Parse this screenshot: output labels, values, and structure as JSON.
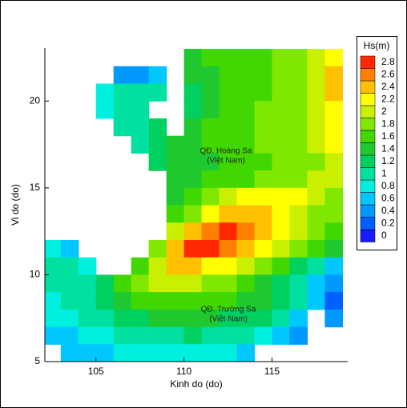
{
  "chart_data": {
    "type": "heatmap",
    "xlabel": "Kinh do (do)",
    "ylabel": "Vi do (do)",
    "xlim": [
      102.1,
      119.3
    ],
    "ylim": [
      5,
      23.05
    ],
    "xticks": [
      105,
      110,
      115
    ],
    "yticks": [
      5,
      10,
      15,
      20
    ],
    "x": [
      102.5,
      103.5,
      104.5,
      105.5,
      106.5,
      107.5,
      108.5,
      109.5,
      110.5,
      111.5,
      112.5,
      113.5,
      114.5,
      115.5,
      116.5,
      117.5,
      118.5
    ],
    "y": [
      22.5,
      21.5,
      20.5,
      19.5,
      18.5,
      17.5,
      16.5,
      15.5,
      14.5,
      13.5,
      12.5,
      11.5,
      10.5,
      9.5,
      8.5,
      7.5,
      6.5,
      5.5
    ],
    "z": [
      [
        null,
        null,
        null,
        null,
        null,
        null,
        null,
        null,
        1.5,
        1.6,
        1.6,
        1.7,
        1.7,
        1.8,
        1.8,
        2.0,
        2.3
      ],
      [
        null,
        null,
        null,
        null,
        0.4,
        0.5,
        0.6,
        null,
        1.4,
        1.5,
        1.6,
        1.7,
        1.7,
        1.8,
        1.9,
        2.1,
        2.4
      ],
      [
        null,
        null,
        null,
        0.8,
        1.0,
        1.0,
        1.0,
        null,
        1.3,
        1.5,
        1.6,
        1.7,
        1.7,
        1.8,
        1.9,
        2.1,
        2.4
      ],
      [
        null,
        null,
        null,
        0.8,
        1.0,
        1.0,
        null,
        null,
        1.2,
        1.5,
        1.6,
        1.7,
        1.8,
        1.8,
        1.9,
        2.1,
        2.3
      ],
      [
        null,
        null,
        null,
        null,
        1.0,
        1.1,
        1.2,
        null,
        1.4,
        1.6,
        1.6,
        1.7,
        1.8,
        1.8,
        1.9,
        2.1,
        2.3
      ],
      [
        null,
        null,
        null,
        null,
        null,
        1.0,
        1.3,
        1.4,
        1.5,
        1.6,
        1.6,
        1.7,
        1.8,
        1.8,
        1.9,
        2.0,
        2.2
      ],
      [
        null,
        null,
        null,
        null,
        null,
        null,
        1.2,
        1.4,
        1.5,
        1.5,
        1.6,
        1.7,
        1.7,
        1.8,
        1.8,
        1.9,
        2.1
      ],
      [
        null,
        null,
        null,
        null,
        null,
        null,
        null,
        1.4,
        1.5,
        1.6,
        1.6,
        1.7,
        1.8,
        1.9,
        1.9,
        2.0,
        2.1
      ],
      [
        null,
        null,
        null,
        null,
        null,
        null,
        null,
        1.5,
        1.7,
        1.9,
        2.0,
        2.2,
        2.3,
        2.3,
        2.2,
        2.0,
        1.8
      ],
      [
        null,
        null,
        null,
        null,
        null,
        null,
        null,
        1.6,
        1.9,
        2.2,
        2.4,
        2.5,
        2.4,
        2.3,
        2.1,
        1.9,
        1.8
      ],
      [
        null,
        null,
        null,
        null,
        null,
        null,
        null,
        2.0,
        2.5,
        2.7,
        2.8,
        2.6,
        2.4,
        2.2,
        2.0,
        1.8,
        1.6
      ],
      [
        0.8,
        0.6,
        null,
        null,
        null,
        null,
        1.8,
        2.4,
        2.8,
        2.8,
        2.6,
        2.4,
        2.2,
        2.0,
        1.8,
        1.6,
        1.4
      ],
      [
        1.0,
        1.0,
        0.9,
        null,
        null,
        1.6,
        2.0,
        2.4,
        2.4,
        2.3,
        2.2,
        2.0,
        1.8,
        1.6,
        1.3,
        1.0,
        0.6
      ],
      [
        1.0,
        1.0,
        1.0,
        1.2,
        1.6,
        1.9,
        2.1,
        2.1,
        2.0,
        1.9,
        1.8,
        1.7,
        1.5,
        1.3,
        1.0,
        0.7,
        0.4
      ],
      [
        0.9,
        1.0,
        1.1,
        1.3,
        1.5,
        1.6,
        1.7,
        1.7,
        1.7,
        1.6,
        1.6,
        1.5,
        1.4,
        1.2,
        1.0,
        0.7,
        0.3
      ],
      [
        0.8,
        0.9,
        1.0,
        1.1,
        1.2,
        1.3,
        1.4,
        1.4,
        1.4,
        1.4,
        1.3,
        1.3,
        1.2,
        1.0,
        0.7,
        null,
        0.4
      ],
      [
        0.6,
        0.7,
        0.8,
        0.9,
        1.0,
        1.1,
        1.1,
        1.1,
        1.2,
        1.1,
        1.1,
        1.0,
        0.9,
        0.7,
        0.5,
        null,
        null
      ],
      [
        null,
        0.6,
        0.6,
        0.7,
        0.8,
        0.8,
        0.9,
        0.9,
        0.9,
        0.9,
        0.8,
        0.7,
        null,
        null,
        null,
        null,
        null
      ]
    ],
    "colorbar_title": "Hs(m)",
    "levels": [
      0,
      0.2,
      0.4,
      0.6,
      0.8,
      1,
      1.2,
      1.4,
      1.6,
      1.8,
      2,
      2.2,
      2.4,
      2.6,
      2.8
    ],
    "colors": [
      "#1a1aff",
      "#0060ff",
      "#0099ff",
      "#00c8ff",
      "#00f0e0",
      "#00e0a0",
      "#00d060",
      "#20c830",
      "#40d800",
      "#80e800",
      "#c8f000",
      "#ffff00",
      "#ffc000",
      "#ff8000",
      "#ff2800"
    ],
    "annotations": [
      "QĐ. Hoàng Sa",
      "(Việt Nam)",
      "QĐ. Trường Sa",
      "(Việt Nam)"
    ]
  }
}
